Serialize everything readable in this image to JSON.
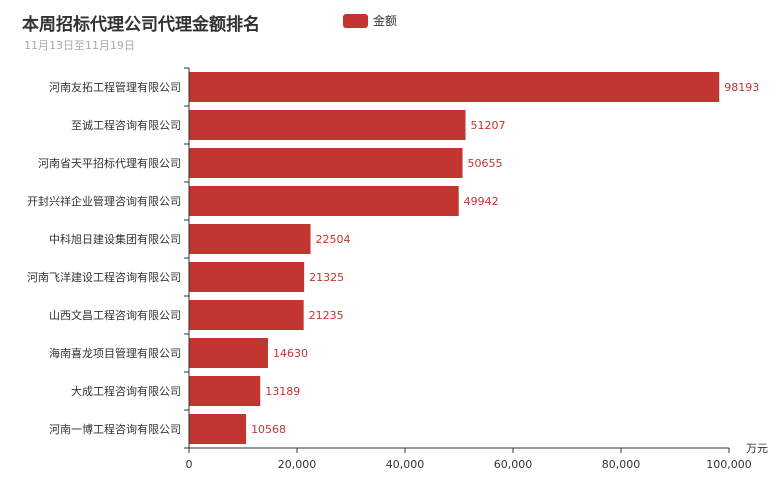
{
  "chart_data": {
    "type": "bar",
    "orientation": "horizontal",
    "title": "本周招标代理公司代理金额排名",
    "subtitle": "11月13日至11月19日",
    "xlabel": "万元",
    "ylabel": "",
    "xlim": [
      0,
      100000
    ],
    "x_ticks": [
      "0",
      "20,000",
      "40,000",
      "60,000",
      "80,000",
      "100,000"
    ],
    "grid": false,
    "legend_position": "top",
    "categories": [
      "河南友拓工程管理有限公司",
      "至诚工程咨询有限公司",
      "河南省天平招标代理有限公司",
      "开封兴祥企业管理咨询有限公司",
      "中科旭日建设集团有限公司",
      "河南飞洋建设工程咨询有限公司",
      "山西文昌工程咨询有限公司",
      "海南喜龙项目管理有限公司",
      "大成工程咨询有限公司",
      "河南一博工程咨询有限公司"
    ],
    "series": [
      {
        "name": "金额",
        "color": "#c23531",
        "values": [
          98193,
          51207,
          50655,
          49942,
          22504,
          21325,
          21235,
          14630,
          13189,
          10568
        ]
      }
    ]
  }
}
